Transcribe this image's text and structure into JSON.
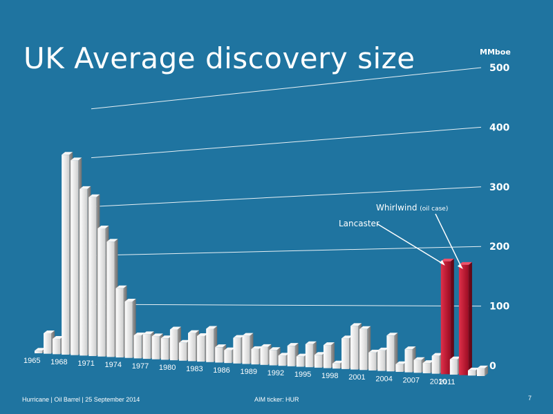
{
  "title": "UK Average discovery size",
  "footer": {
    "left": "Hurricane  |  Oil Barrel  |  25 September 2014",
    "mid": "AIM ticker: HUR",
    "page": "7"
  },
  "chart_data": {
    "type": "bar",
    "title": "UK Average discovery size",
    "ylabel": "MMboe",
    "ylim": [
      0,
      500
    ],
    "yticks": [
      "0",
      "100",
      "200",
      "300",
      "400",
      "500"
    ],
    "x_tick_labels": [
      "1965",
      "1968",
      "1971",
      "1974",
      "1977",
      "1980",
      "1983",
      "1986",
      "1989",
      "1992",
      "1995",
      "1998",
      "2001",
      "2004",
      "2007",
      "2010",
      "2011"
    ],
    "years": [
      1965,
      1966,
      1967,
      1968,
      1969,
      1970,
      1971,
      1972,
      1973,
      1974,
      1975,
      1976,
      1977,
      1978,
      1979,
      1980,
      1981,
      1982,
      1983,
      1984,
      1985,
      1986,
      1987,
      1988,
      1989,
      1990,
      1991,
      1992,
      1993,
      1994,
      1995,
      1996,
      1997,
      1998,
      1999,
      2000,
      2001,
      2002,
      2003,
      2004,
      2005,
      2006,
      2007,
      2008,
      2009,
      2010,
      2011,
      2012,
      2013,
      2014
    ],
    "values": [
      5,
      40,
      30,
      390,
      380,
      325,
      310,
      250,
      225,
      135,
      110,
      45,
      48,
      45,
      42,
      60,
      35,
      55,
      50,
      65,
      30,
      25,
      50,
      55,
      30,
      35,
      30,
      20,
      40,
      20,
      45,
      25,
      45,
      10,
      60,
      85,
      80,
      35,
      40,
      70,
      15,
      45,
      25,
      20,
      35,
      220,
      30,
      215,
      10,
      15
    ],
    "highlight_color": "#c0102a",
    "bar_color": "#e6e6e6",
    "series": [
      {
        "name": "Lancaster",
        "x": 2010,
        "value": 220
      },
      {
        "name": "Whirlwind (oil case)",
        "x": 2012,
        "value": 215
      }
    ],
    "annotations": [
      {
        "text": "Lancaster",
        "target_year": 2010
      },
      {
        "text": "Whirlwind",
        "sub": "(oil case)",
        "target_year": 2012
      }
    ]
  }
}
